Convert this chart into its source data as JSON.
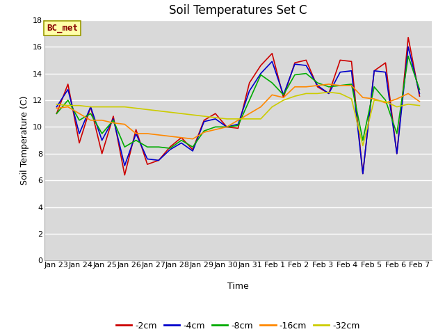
{
  "title": "Soil Temperatures Set C",
  "xlabel": "Time",
  "ylabel": "Soil Temperature (C)",
  "ylim": [
    0,
    18
  ],
  "yticks": [
    0,
    2,
    4,
    6,
    8,
    10,
    12,
    14,
    16,
    18
  ],
  "x_labels": [
    "Jan 23",
    "Jan 24",
    "Jan 25",
    "Jan 26",
    "Jan 27",
    "Jan 28",
    "Jan 29",
    "Jan 30",
    "Jan 31",
    "Feb 1",
    "Feb 2",
    "Feb 3",
    "Feb 4",
    "Feb 5",
    "Feb 6",
    "Feb 7"
  ],
  "annotation": "BC_met",
  "series": {
    "-2cm": {
      "color": "#cc0000",
      "values": [
        11.0,
        13.2,
        8.8,
        11.5,
        8.0,
        10.8,
        6.4,
        9.8,
        7.2,
        7.5,
        8.5,
        9.2,
        8.3,
        10.5,
        11.0,
        10.0,
        9.9,
        13.3,
        14.6,
        15.5,
        12.2,
        14.8,
        15.0,
        13.0,
        12.5,
        15.0,
        14.9,
        6.5,
        14.2,
        14.8,
        8.0,
        16.7,
        12.3
      ]
    },
    "-4cm": {
      "color": "#0000cc",
      "values": [
        11.5,
        12.8,
        9.5,
        11.5,
        9.0,
        10.6,
        7.1,
        9.5,
        7.6,
        7.5,
        8.3,
        8.8,
        8.2,
        10.4,
        10.6,
        10.0,
        10.2,
        12.7,
        14.0,
        14.9,
        12.4,
        14.7,
        14.6,
        13.1,
        12.5,
        14.1,
        14.2,
        6.5,
        14.2,
        14.1,
        8.0,
        16.0,
        12.5
      ]
    },
    "-8cm": {
      "color": "#00aa00",
      "values": [
        11.0,
        12.0,
        10.5,
        11.0,
        9.5,
        10.5,
        8.5,
        9.0,
        8.5,
        8.5,
        8.4,
        9.0,
        8.5,
        9.7,
        10.0,
        10.0,
        10.1,
        12.0,
        13.9,
        13.3,
        12.4,
        13.9,
        14.0,
        13.3,
        13.0,
        13.1,
        13.2,
        9.0,
        13.0,
        12.0,
        9.5,
        15.3,
        12.8
      ]
    },
    "-16cm": {
      "color": "#ff8800",
      "values": [
        11.4,
        11.5,
        11.0,
        10.5,
        10.5,
        10.3,
        10.2,
        9.5,
        9.5,
        9.4,
        9.3,
        9.2,
        9.1,
        9.6,
        9.8,
        10.0,
        10.5,
        11.0,
        11.5,
        12.4,
        12.2,
        13.0,
        13.0,
        13.1,
        13.2,
        13.1,
        13.1,
        12.2,
        12.1,
        11.8,
        12.1,
        12.5,
        11.9
      ]
    },
    "-32cm": {
      "color": "#cccc00",
      "values": [
        11.7,
        11.6,
        11.6,
        11.5,
        11.5,
        11.5,
        11.5,
        11.4,
        11.3,
        11.2,
        11.1,
        11.0,
        10.9,
        10.8,
        10.7,
        10.6,
        10.6,
        10.6,
        10.6,
        11.5,
        12.0,
        12.3,
        12.5,
        12.5,
        12.6,
        12.5,
        12.1,
        8.6,
        12.0,
        11.9,
        11.5,
        11.7,
        11.6
      ]
    }
  },
  "plot_bg_color": "#d9d9d9",
  "fig_bg_color": "#ffffff",
  "grid_color": "#ffffff",
  "title_fontsize": 12,
  "axis_label_fontsize": 9,
  "tick_fontsize": 8,
  "legend_fontsize": 9,
  "annotation_fontsize": 9,
  "annotation_bg": "#ffffaa",
  "annotation_border": "#999900",
  "annotation_text_color": "#880000"
}
